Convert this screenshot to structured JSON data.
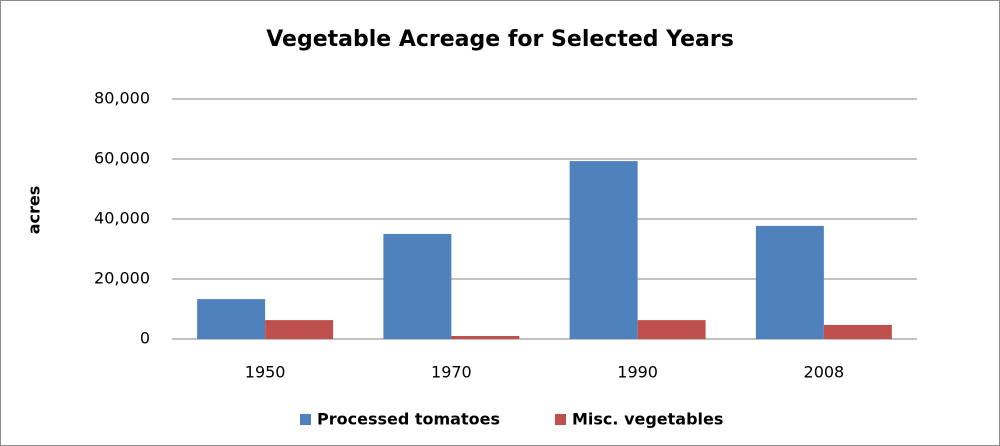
{
  "chart_data": {
    "type": "bar",
    "title": "Vegetable Acreage for Selected Years",
    "y_label": "acres",
    "categories": [
      "1950",
      "1970",
      "1990",
      "2008"
    ],
    "series": [
      {
        "name": "Processed tomatoes",
        "color": "#4f81bd",
        "values": [
          13300,
          35000,
          59300,
          37700
        ]
      },
      {
        "name": "Misc. vegetables",
        "color": "#c0504d",
        "values": [
          6300,
          1000,
          6300,
          4700
        ]
      }
    ],
    "ylim": [
      0,
      80000
    ],
    "yticks": [
      0,
      {
        "value": 20000,
        "label": "20,000"
      },
      {
        "value": 40000,
        "label": "40,000"
      },
      {
        "value": 60000,
        "label": "60,000"
      },
      {
        "value": 80000,
        "label": "80,000"
      }
    ],
    "grid": true,
    "legend": "bottom"
  }
}
